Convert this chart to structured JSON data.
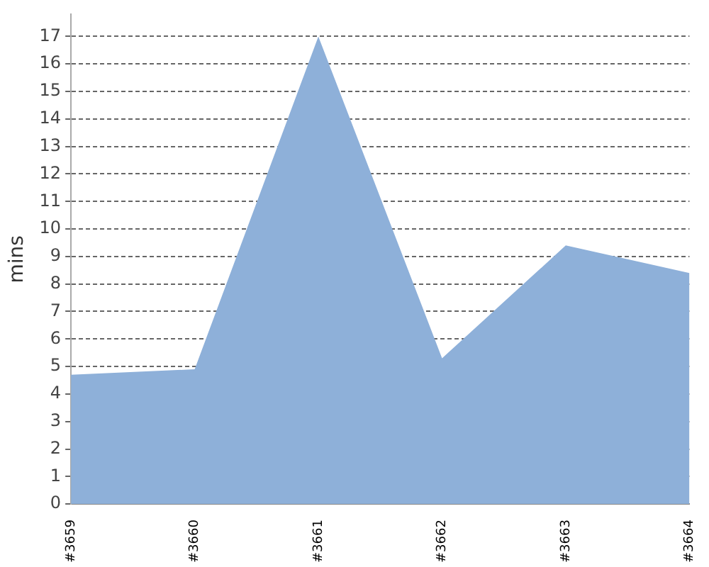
{
  "chart_data": {
    "type": "area",
    "ylabel": "mins",
    "categories": [
      "#3659",
      "#3660",
      "#3661",
      "#3662",
      "#3663",
      "#3664"
    ],
    "series": [
      {
        "color": "#8eb0d9",
        "values": [
          4.7,
          4.9,
          17.0,
          5.3,
          9.4,
          8.4
        ]
      }
    ],
    "ylim": [
      0,
      17.8
    ],
    "yticks": [
      0,
      1,
      2,
      3,
      4,
      5,
      6,
      7,
      8,
      9,
      10,
      11,
      12,
      13,
      14,
      15,
      16,
      17
    ],
    "grid": "y",
    "legend": false
  }
}
